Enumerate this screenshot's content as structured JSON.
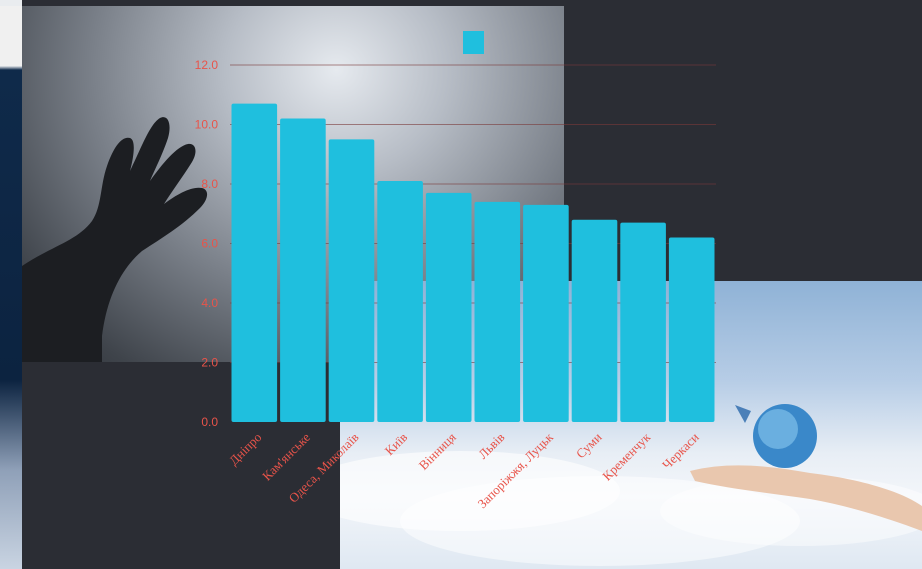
{
  "colors": {
    "bar": "#1fbfde",
    "axis_text": "#e8544a",
    "gridline": "#7a3a3a",
    "background": "#2b2d34",
    "legend_swatch": "#1fbfde"
  },
  "chart_data": {
    "type": "bar",
    "categories": [
      "Дніпро",
      "Кам'янське",
      "Одеса, Миколаїв",
      "Київ",
      "Вінниця",
      "Львів",
      "Запоріжжя, Луцьк",
      "Суми",
      "Кременчук",
      "Черкаси"
    ],
    "values": [
      10.7,
      10.2,
      9.5,
      8.1,
      7.7,
      7.4,
      7.3,
      6.8,
      6.7,
      6.2
    ],
    "ylim": [
      0,
      12
    ],
    "yticks": [
      "0.0",
      "2.0",
      "4.0",
      "6.0",
      "8.0",
      "10.0",
      "12.0"
    ],
    "grid": true,
    "legend": "top-center"
  }
}
